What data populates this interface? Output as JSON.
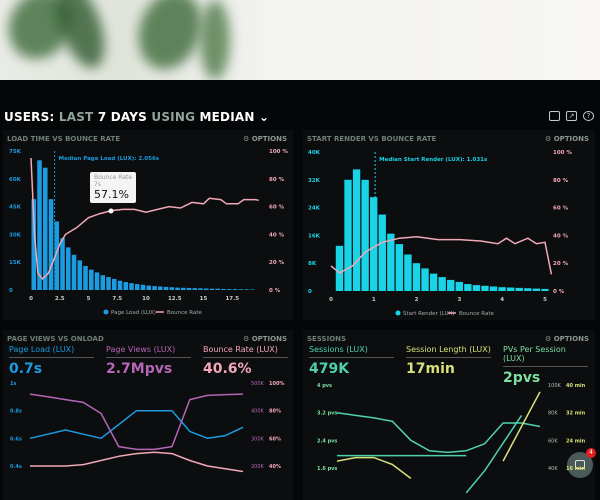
{
  "header": {
    "w1": "USERS:",
    "w2": "LAST",
    "w3": "7 DAYS",
    "w4": "USING",
    "w5": "MEDIAN"
  },
  "icons": [
    "monitor-icon",
    "share-icon",
    "help-icon"
  ],
  "options_label": "OPTIONS",
  "colors": {
    "blue": "#1b9be0",
    "cyan": "#19d3e6",
    "pink": "#f2a8b8",
    "purple": "#b566b8",
    "teal": "#4fd1b0",
    "yellow": "#d8e07a",
    "green": "#7de0a0"
  },
  "chart_data": [
    {
      "type": "bar",
      "title": "LOAD TIME VS BOUNCE RATE",
      "annotation": "Median Page Load (LUX): 2.056s",
      "median": 2.056,
      "tooltip": {
        "label": "Bounce Rate",
        "sub": "7s",
        "value": "57.1%",
        "x": 7
      },
      "xlim": [
        0,
        20
      ],
      "ylim": [
        0,
        75000
      ],
      "y2lim": [
        0,
        100
      ],
      "xticks": [
        "0",
        "2.5",
        "5",
        "7.5",
        "10",
        "12.5",
        "15",
        "17.5"
      ],
      "yticks": [
        "0",
        "15K",
        "30K",
        "45K",
        "60K",
        "75K"
      ],
      "y2ticks": [
        "0 %",
        "20 %",
        "40 %",
        "60 %",
        "80 %",
        "100 %"
      ],
      "legend": [
        "Page Load (LUX)",
        "Bounce Rate"
      ],
      "bar_width": 0.5,
      "bars": [
        49,
        70,
        66,
        49,
        37,
        28,
        23,
        19,
        16,
        13,
        11,
        9.5,
        8,
        7,
        6,
        5,
        4.3,
        3.7,
        3.2,
        2.8,
        2.4,
        2.1,
        1.9,
        1.7,
        1.5,
        1.3,
        1.2,
        1.1,
        1,
        0.9,
        0.8,
        0.7,
        0.7,
        0.6,
        0.5,
        0.5,
        0.4,
        0.4,
        0.3
      ],
      "bar_units": 1000,
      "bounce": [
        [
          0,
          95
        ],
        [
          0.3,
          40
        ],
        [
          0.6,
          12
        ],
        [
          1,
          8
        ],
        [
          1.5,
          12
        ],
        [
          2,
          22
        ],
        [
          2.5,
          33
        ],
        [
          3,
          40
        ],
        [
          4,
          45
        ],
        [
          5,
          52
        ],
        [
          6,
          55
        ],
        [
          7,
          57.1
        ],
        [
          8,
          58
        ],
        [
          9,
          58
        ],
        [
          10,
          56
        ],
        [
          11,
          58
        ],
        [
          12,
          60
        ],
        [
          13,
          59
        ],
        [
          14,
          63
        ],
        [
          15,
          62
        ],
        [
          15.5,
          66
        ],
        [
          16.5,
          65
        ],
        [
          17,
          62
        ],
        [
          18,
          62
        ],
        [
          18.5,
          65
        ],
        [
          19.5,
          65
        ],
        [
          19.8,
          64.5
        ]
      ]
    },
    {
      "type": "bar",
      "title": "START RENDER VS BOUNCE RATE",
      "annotation": "Median Start Render (LUX): 1.031s",
      "median": 1.031,
      "xlim": [
        0,
        5
      ],
      "ylim": [
        0,
        40000
      ],
      "y2lim": [
        0,
        100
      ],
      "xticks": [
        "0",
        "1",
        "2",
        "3",
        "4",
        "5"
      ],
      "yticks": [
        "0",
        "8K",
        "16K",
        "24K",
        "32K",
        "40K"
      ],
      "y2ticks": [
        "0 %",
        "20 %",
        "40 %",
        "60 %",
        "80 %",
        "100 %"
      ],
      "legend": [
        "Start Render (LUX)",
        "Bounce Rate"
      ],
      "bar_width": 0.2,
      "bars": [
        13,
        32,
        35,
        32,
        27,
        22,
        16.5,
        13.5,
        10.5,
        8,
        6.5,
        5,
        4,
        3.2,
        2.6,
        2,
        1.7,
        1.5,
        1.3,
        1.1,
        1,
        0.9,
        0.8,
        0.7,
        0.6
      ],
      "bar_units": 1000,
      "bounce": [
        [
          0,
          18
        ],
        [
          0.2,
          13
        ],
        [
          0.5,
          18
        ],
        [
          0.8,
          28
        ],
        [
          1.2,
          35
        ],
        [
          1.6,
          38
        ],
        [
          2,
          39
        ],
        [
          2.5,
          37
        ],
        [
          3,
          37
        ],
        [
          3.5,
          36
        ],
        [
          3.9,
          34
        ],
        [
          4.1,
          38
        ],
        [
          4.3,
          34
        ],
        [
          4.6,
          38
        ],
        [
          4.8,
          34
        ],
        [
          5,
          35
        ],
        [
          5.15,
          12
        ]
      ]
    },
    {
      "type": "line",
      "title": "PAGE VIEWS VS ONLOAD",
      "metrics": [
        {
          "label": "Page Load (LUX)",
          "value": "0.7s"
        },
        {
          "label": "Page Views (LUX)",
          "value": "2.7Mpvs"
        },
        {
          "label": "Bounce Rate (LUX)",
          "value": "40.6%"
        }
      ],
      "yticks": [
        "1s",
        "0.8s",
        "0.6s",
        "0.4s"
      ],
      "y2ticks": [
        "500K",
        "400K",
        "300K",
        "200K"
      ],
      "y3ticks": [
        "100%",
        "80%",
        "60%",
        "40%"
      ],
      "series": [
        {
          "name": "Page Load (LUX)",
          "axis": [
            0.4,
            1
          ],
          "values": [
            0.6,
            0.63,
            0.66,
            0.63,
            0.6,
            0.7,
            0.8,
            0.8,
            0.8,
            0.65,
            0.6,
            0.62,
            0.68
          ]
        },
        {
          "name": "Page Views (LUX)",
          "axis": [
            200000,
            500000
          ],
          "values": [
            460000,
            450000,
            440000,
            430000,
            390000,
            270000,
            260000,
            260000,
            270000,
            440000,
            455000,
            458000,
            460000
          ]
        },
        {
          "name": "Bounce Rate (LUX)",
          "axis": [
            40,
            100
          ],
          "values": [
            40,
            40,
            40,
            41,
            44,
            47,
            49,
            50,
            49,
            44,
            40,
            38,
            36
          ]
        }
      ]
    },
    {
      "type": "line",
      "title": "SESSIONS",
      "metrics": [
        {
          "label": "Sessions (LUX)",
          "value": "479K"
        },
        {
          "label": "Session Length (LUX)",
          "value": "17min"
        },
        {
          "label": "PVs Per Session (LUX)",
          "value": "2pvs"
        }
      ],
      "yticks": [
        "4 pvs",
        "3.2 pvs",
        "2.4 pvs",
        "1.6 pvs"
      ],
      "y2ticks": [
        "100K",
        "80K",
        "60K",
        "40K"
      ],
      "y3ticks": [
        "40 min",
        "32 min",
        "24 min",
        "16 min"
      ],
      "series": [
        {
          "name": "PVs Per Session (LUX)",
          "axis": [
            1.6,
            4
          ],
          "values": [
            3.2,
            3.12,
            3.05,
            2.95,
            2.4,
            2.1,
            2.05,
            2.1,
            2.3,
            2.9,
            2.9,
            2.8
          ]
        },
        {
          "name": "Sessions (LUX)",
          "axis": [
            40000,
            100000
          ],
          "values": [
            49000,
            49000,
            49000,
            49000,
            49000,
            49000,
            49000,
            49000,
            null,
            null,
            null,
            null
          ]
        },
        {
          "name": "Session Length (LUX)",
          "axis": [
            16,
            40
          ],
          "values": [
            18,
            19,
            19,
            17,
            13,
            null,
            null,
            null,
            null,
            18,
            28,
            38
          ]
        },
        {
          "name": "Sessions (LUX) trend",
          "axis": [
            40000,
            100000
          ],
          "values": [
            null,
            null,
            null,
            null,
            null,
            null,
            null,
            22000,
            38000,
            58000,
            78000,
            null
          ]
        }
      ]
    }
  ],
  "chat": {
    "badge": "4"
  }
}
